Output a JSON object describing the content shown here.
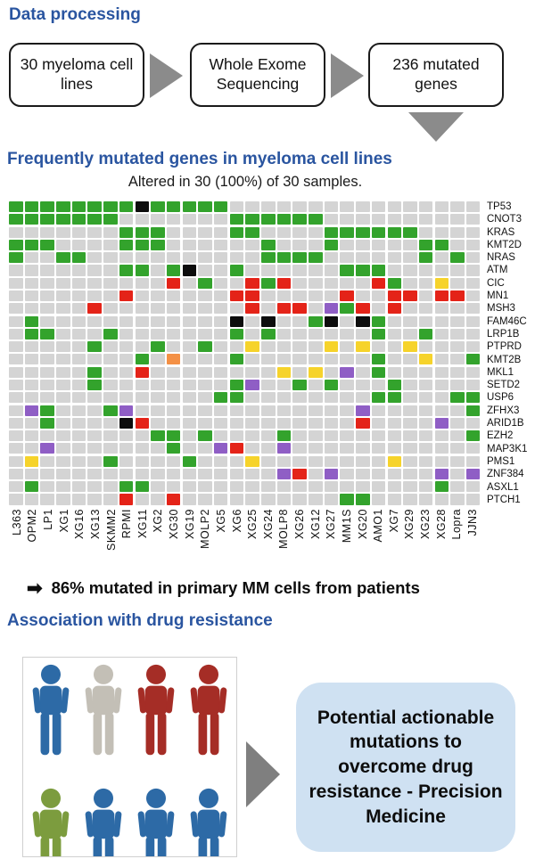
{
  "header1": "Data processing",
  "flowchart": {
    "boxes": [
      "30 myeloma cell lines",
      "Whole Exome Sequencing",
      "236 mutated genes"
    ],
    "arrow_color": "#8b8b8b"
  },
  "header2": "Frequently mutated genes in myeloma cell lines",
  "oncoprint": {
    "subtitle": "Altered in 30 (100%) of 30 samples.",
    "samples": [
      "L363",
      "OPM2",
      "LP1",
      "XG1",
      "XG16",
      "XG13",
      "SKMM2",
      "RPMI",
      "XG11",
      "XG2",
      "XG30",
      "XG19",
      "MOLP2",
      "XG5",
      "XG6",
      "XG25",
      "XG24",
      "MOLP8",
      "XG26",
      "XG12",
      "XG27",
      "MM1S",
      "XG20",
      "AMO1",
      "XG7",
      "XG29",
      "XG23",
      "XG28",
      "Lopra",
      "JJN3"
    ],
    "genes": [
      "TP53",
      "CNOT3",
      "KRAS",
      "KMT2D",
      "NRAS",
      "ATM",
      "CIC",
      "MN1",
      "MSH3",
      "FAM46C",
      "LRP1B",
      "PTPRD",
      "KMT2B",
      "MKL1",
      "SETD2",
      "USP6",
      "ZFHX3",
      "ARID1B",
      "EZH2",
      "MAP3K1",
      "PMS1",
      "ZNF384",
      "ASXL1",
      "PTCH1"
    ],
    "grid": [
      "GGGGGGGGBGGGGG................",
      "GGGGGGG.......GGGGGG..........",
      ".......GGG....GG....GGGGGG....",
      "GGG....GGG......G...G.....GG..",
      "G..GG...........GGGG......G.G.",
      ".......GG.GB..G......GGG......",
      "..........R.G..RGR.....RG..Y..",
      ".......R......RR.....R..RR.RR.",
      ".....R.........R.RR.PGR.R.....",
      ".G............B.B..GB.BG......",
      ".GG...G.......G.G......G..G...",
      ".....G...G..G..Y....Y.Y..Y....",
      "........G.O...G........G..Y..G",
      ".....G..R........Y.Y.P.G......",
      ".....G........GP..G.G...G.....",
      ".............GG........GG...GG",
      ".PG...GP..............P......G",
      "..G....BR.............R....P..",
      ".........GG.G....G...........G",
      "..P.......G..PR..P............",
      ".Y....G....G...Y........Y.....",
      ".................PR.P......P.P",
      ".G.....GG..................G..",
      ".......R..R..........GG......."
    ],
    "palette": {
      "G": "#33a32c",
      "R": "#e42318",
      "Y": "#f6d32b",
      "P": "#8f5ec5",
      "B": "#0d0d0d",
      "O": "#f49045",
      ".": "#d4d4d4"
    },
    "legend_meaning": {
      "G": "green-mutation",
      "R": "red-mutation",
      "Y": "yellow-mutation",
      "P": "purple-mutation",
      "B": "black-mutation",
      "O": "orange-mutation",
      ".": "no-alteration"
    }
  },
  "note": {
    "arrow": "➡",
    "text": "86% mutated in primary MM cells from patients"
  },
  "header3": "Association with drug resistance",
  "people": {
    "colors": [
      "#2d6aa6",
      "#c3bfb6",
      "#a52d26",
      "#a52d26",
      "#7c9c3e",
      "#2d6aa6",
      "#2d6aa6",
      "#2d6aa6"
    ]
  },
  "conclusion": "Potential actionable mutations to overcome drug resistance - Precision Medicine",
  "accent_colors": {
    "header_blue": "#2a55a0",
    "conclusion_bg": "#cfe1f2",
    "big_arrow_gray": "#7f7f7f"
  }
}
